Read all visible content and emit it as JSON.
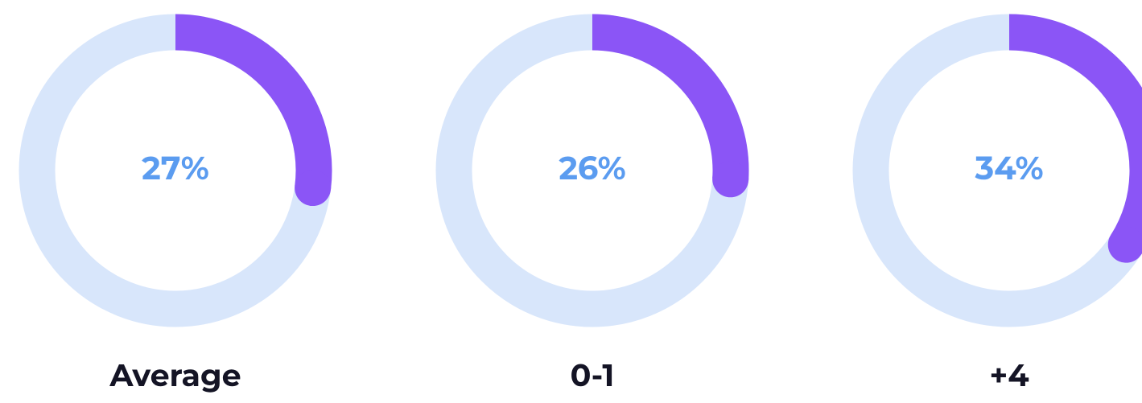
{
  "chart_data": [
    {
      "type": "donut",
      "categories": [
        "Average"
      ],
      "values": [
        27
      ],
      "value_labels": [
        "27%"
      ],
      "ylim": [
        0,
        100
      ],
      "color": "#8b55f6",
      "track_color": "#d8e6fb"
    },
    {
      "type": "donut",
      "categories": [
        "0-1"
      ],
      "values": [
        26
      ],
      "value_labels": [
        "26%"
      ],
      "ylim": [
        0,
        100
      ],
      "color": "#8b55f6",
      "track_color": "#d8e6fb"
    },
    {
      "type": "donut",
      "categories": [
        "+4"
      ],
      "values": [
        34
      ],
      "value_labels": [
        "34%"
      ],
      "ylim": [
        0,
        100
      ],
      "color": "#8b55f6",
      "track_color": "#d8e6fb"
    }
  ]
}
